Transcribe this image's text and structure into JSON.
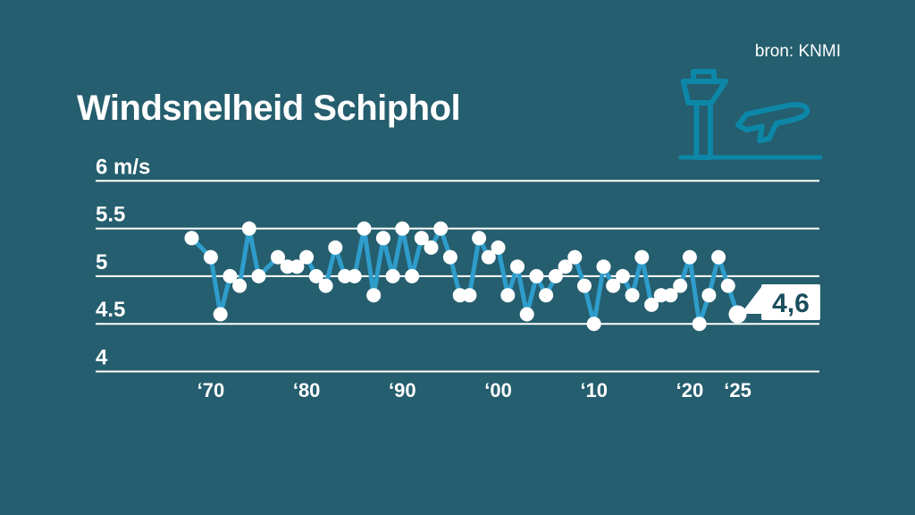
{
  "title": "Windsnelheid Schiphol",
  "source": "bron: KNMI",
  "colors": {
    "background": "#255E6E",
    "grid": "#FFFFFF",
    "text": "#FFFFFF",
    "line": "#2F9DCB",
    "dot": "#FFFFFF",
    "icon": "#0D87A8",
    "callout_box": "#FFFFFF",
    "callout_text": "#1A4D5D"
  },
  "icons": {
    "header": "control-tower-and-airplane-icon"
  },
  "callout": {
    "label": "4,6"
  },
  "chart_data": {
    "type": "line",
    "title": "Windsnelheid Schiphol",
    "ylabel": "m/s",
    "xlabel": "",
    "ylim": [
      4,
      6
    ],
    "grid": true,
    "legend_position": "none",
    "yticks": [
      {
        "value": 6,
        "label": "6 m/s"
      },
      {
        "value": 5.5,
        "label": "5.5"
      },
      {
        "value": 5,
        "label": "5"
      },
      {
        "value": 4.5,
        "label": "4.5"
      },
      {
        "value": 4,
        "label": "4"
      }
    ],
    "xticks": [
      {
        "year": 1970,
        "label": "‘70"
      },
      {
        "year": 1980,
        "label": "‘80"
      },
      {
        "year": 1990,
        "label": "‘90"
      },
      {
        "year": 2000,
        "label": "‘00"
      },
      {
        "year": 2010,
        "label": "‘10"
      },
      {
        "year": 2020,
        "label": "‘20"
      },
      {
        "year": 2025,
        "label": "‘25"
      }
    ],
    "x": [
      1968,
      1970,
      1971,
      1972,
      1973,
      1974,
      1975,
      1977,
      1978,
      1979,
      1980,
      1981,
      1982,
      1983,
      1984,
      1985,
      1986,
      1987,
      1988,
      1989,
      1990,
      1991,
      1992,
      1993,
      1994,
      1995,
      1996,
      1997,
      1998,
      1999,
      2000,
      2001,
      2002,
      2003,
      2004,
      2005,
      2006,
      2007,
      2008,
      2009,
      2010,
      2011,
      2012,
      2013,
      2014,
      2015,
      2016,
      2017,
      2018,
      2019,
      2020,
      2021,
      2022,
      2023,
      2024,
      2025
    ],
    "values": [
      5.4,
      5.2,
      4.6,
      5.0,
      4.9,
      5.5,
      5.0,
      5.2,
      5.1,
      5.1,
      5.2,
      5.0,
      4.9,
      5.3,
      5.0,
      5.0,
      5.5,
      4.8,
      5.4,
      5.0,
      5.5,
      5.0,
      5.4,
      5.3,
      5.5,
      5.2,
      4.8,
      4.8,
      5.4,
      5.2,
      5.3,
      4.8,
      5.1,
      4.6,
      5.0,
      4.8,
      5.0,
      5.1,
      5.2,
      4.9,
      4.5,
      5.1,
      4.9,
      5.0,
      4.8,
      5.2,
      4.7,
      4.8,
      4.8,
      4.9,
      5.2,
      4.5,
      4.8,
      5.2,
      4.9,
      4.6
    ],
    "last_value_label": "4,6"
  }
}
